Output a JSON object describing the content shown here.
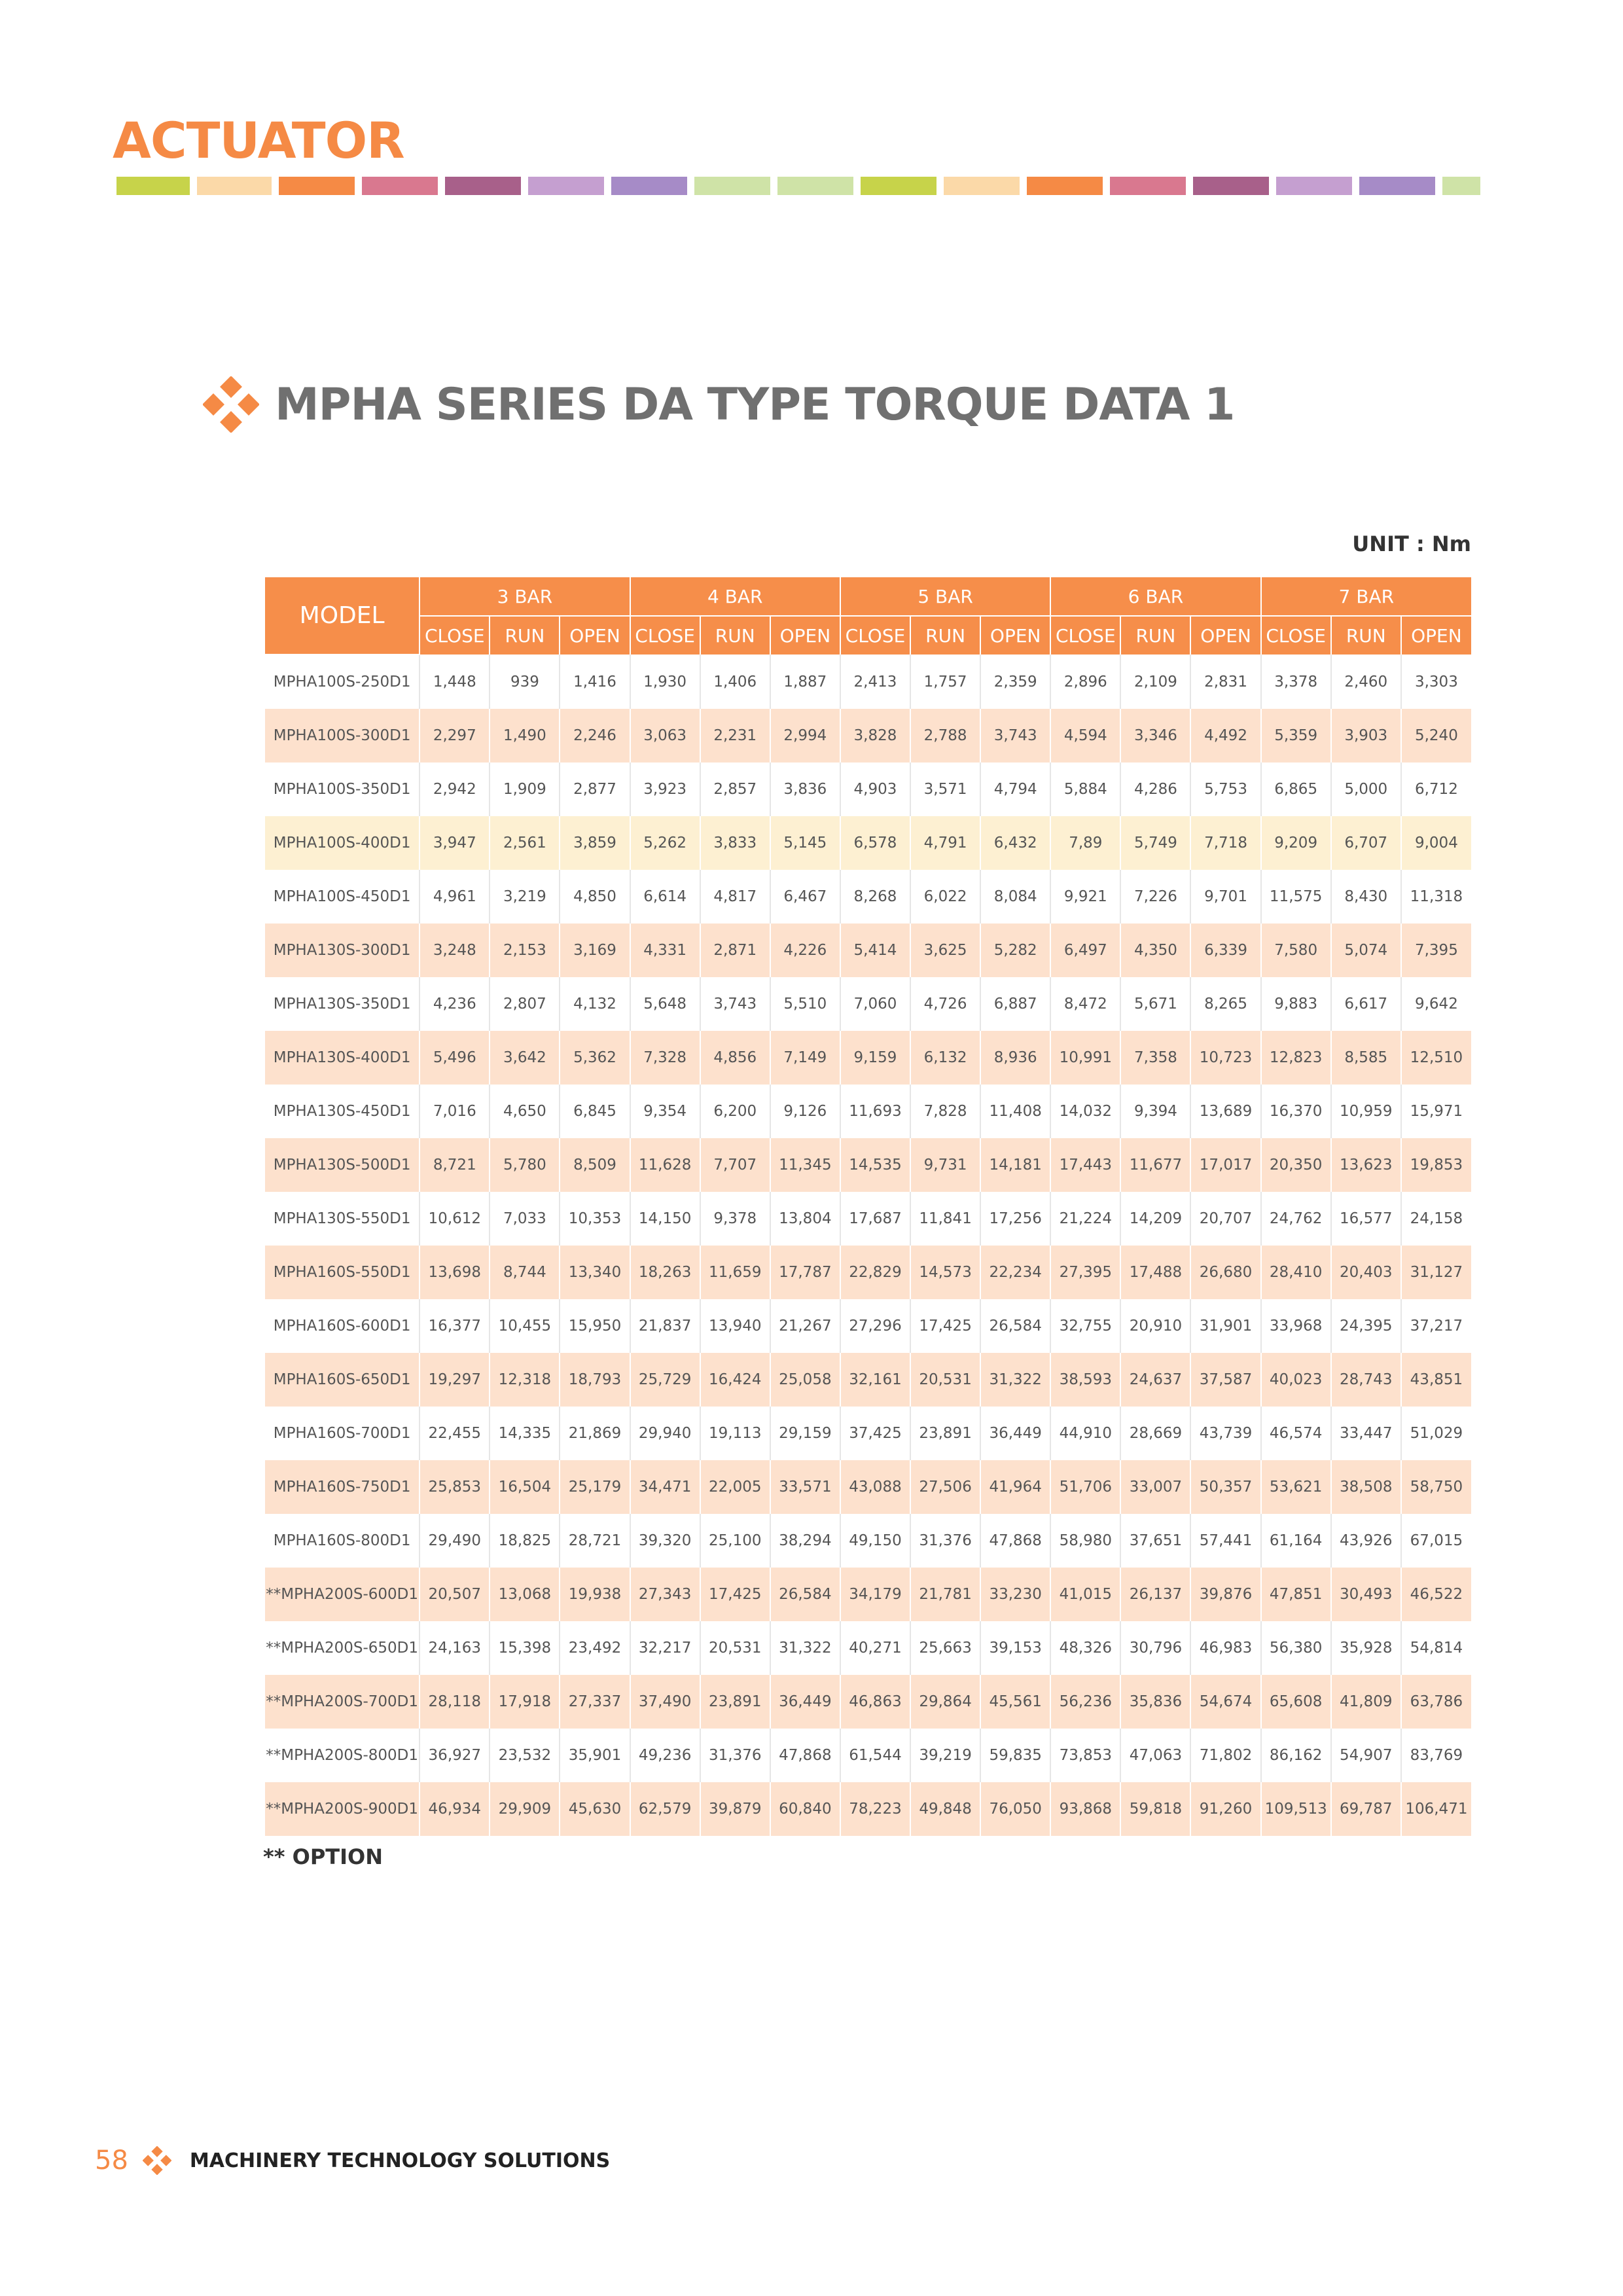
{
  "header": {
    "section": "ACTUATOR",
    "color_bar": [
      "#c7d34a",
      "#fbd9a8",
      "#f58a45",
      "#d9788f",
      "#a8608a",
      "#c59fd0",
      "#a68bc7",
      "#cfe3a7",
      "#cfe3a7",
      "#c7d34a",
      "#fbd9a8",
      "#f58a45",
      "#d9788f",
      "#a8608a",
      "#c59fd0",
      "#a68bc7",
      "#cfe3a7"
    ]
  },
  "heading": {
    "title": "MPHA SERIES DA TYPE TORQUE DATA 1",
    "icon": "diamond-cluster-icon"
  },
  "unit_label": "UNIT : Nm",
  "table": {
    "model_header": "MODEL",
    "pressures": [
      "3 BAR",
      "4 BAR",
      "5 BAR",
      "6 BAR",
      "7 BAR"
    ],
    "sub_headers": [
      "CLOSE",
      "RUN",
      "OPEN"
    ],
    "highlight_row_index": 3,
    "rows": [
      {
        "model": "MPHA100S-250D1",
        "values": [
          "1,448",
          "939",
          "1,416",
          "1,930",
          "1,406",
          "1,887",
          "2,413",
          "1,757",
          "2,359",
          "2,896",
          "2,109",
          "2,831",
          "3,378",
          "2,460",
          "3,303"
        ]
      },
      {
        "model": "MPHA100S-300D1",
        "values": [
          "2,297",
          "1,490",
          "2,246",
          "3,063",
          "2,231",
          "2,994",
          "3,828",
          "2,788",
          "3,743",
          "4,594",
          "3,346",
          "4,492",
          "5,359",
          "3,903",
          "5,240"
        ]
      },
      {
        "model": "MPHA100S-350D1",
        "values": [
          "2,942",
          "1,909",
          "2,877",
          "3,923",
          "2,857",
          "3,836",
          "4,903",
          "3,571",
          "4,794",
          "5,884",
          "4,286",
          "5,753",
          "6,865",
          "5,000",
          "6,712"
        ]
      },
      {
        "model": "MPHA100S-400D1",
        "values": [
          "3,947",
          "2,561",
          "3,859",
          "5,262",
          "3,833",
          "5,145",
          "6,578",
          "4,791",
          "6,432",
          "7,89",
          "5,749",
          "7,718",
          "9,209",
          "6,707",
          "9,004"
        ]
      },
      {
        "model": "MPHA100S-450D1",
        "values": [
          "4,961",
          "3,219",
          "4,850",
          "6,614",
          "4,817",
          "6,467",
          "8,268",
          "6,022",
          "8,084",
          "9,921",
          "7,226",
          "9,701",
          "11,575",
          "8,430",
          "11,318"
        ]
      },
      {
        "model": "MPHA130S-300D1",
        "values": [
          "3,248",
          "2,153",
          "3,169",
          "4,331",
          "2,871",
          "4,226",
          "5,414",
          "3,625",
          "5,282",
          "6,497",
          "4,350",
          "6,339",
          "7,580",
          "5,074",
          "7,395"
        ]
      },
      {
        "model": "MPHA130S-350D1",
        "values": [
          "4,236",
          "2,807",
          "4,132",
          "5,648",
          "3,743",
          "5,510",
          "7,060",
          "4,726",
          "6,887",
          "8,472",
          "5,671",
          "8,265",
          "9,883",
          "6,617",
          "9,642"
        ]
      },
      {
        "model": "MPHA130S-400D1",
        "values": [
          "5,496",
          "3,642",
          "5,362",
          "7,328",
          "4,856",
          "7,149",
          "9,159",
          "6,132",
          "8,936",
          "10,991",
          "7,358",
          "10,723",
          "12,823",
          "8,585",
          "12,510"
        ]
      },
      {
        "model": "MPHA130S-450D1",
        "values": [
          "7,016",
          "4,650",
          "6,845",
          "9,354",
          "6,200",
          "9,126",
          "11,693",
          "7,828",
          "11,408",
          "14,032",
          "9,394",
          "13,689",
          "16,370",
          "10,959",
          "15,971"
        ]
      },
      {
        "model": "MPHA130S-500D1",
        "values": [
          "8,721",
          "5,780",
          "8,509",
          "11,628",
          "7,707",
          "11,345",
          "14,535",
          "9,731",
          "14,181",
          "17,443",
          "11,677",
          "17,017",
          "20,350",
          "13,623",
          "19,853"
        ]
      },
      {
        "model": "MPHA130S-550D1",
        "values": [
          "10,612",
          "7,033",
          "10,353",
          "14,150",
          "9,378",
          "13,804",
          "17,687",
          "11,841",
          "17,256",
          "21,224",
          "14,209",
          "20,707",
          "24,762",
          "16,577",
          "24,158"
        ]
      },
      {
        "model": "MPHA160S-550D1",
        "values": [
          "13,698",
          "8,744",
          "13,340",
          "18,263",
          "11,659",
          "17,787",
          "22,829",
          "14,573",
          "22,234",
          "27,395",
          "17,488",
          "26,680",
          "28,410",
          "20,403",
          "31,127"
        ]
      },
      {
        "model": "MPHA160S-600D1",
        "values": [
          "16,377",
          "10,455",
          "15,950",
          "21,837",
          "13,940",
          "21,267",
          "27,296",
          "17,425",
          "26,584",
          "32,755",
          "20,910",
          "31,901",
          "33,968",
          "24,395",
          "37,217"
        ]
      },
      {
        "model": "MPHA160S-650D1",
        "values": [
          "19,297",
          "12,318",
          "18,793",
          "25,729",
          "16,424",
          "25,058",
          "32,161",
          "20,531",
          "31,322",
          "38,593",
          "24,637",
          "37,587",
          "40,023",
          "28,743",
          "43,851"
        ]
      },
      {
        "model": "MPHA160S-700D1",
        "values": [
          "22,455",
          "14,335",
          "21,869",
          "29,940",
          "19,113",
          "29,159",
          "37,425",
          "23,891",
          "36,449",
          "44,910",
          "28,669",
          "43,739",
          "46,574",
          "33,447",
          "51,029"
        ]
      },
      {
        "model": "MPHA160S-750D1",
        "values": [
          "25,853",
          "16,504",
          "25,179",
          "34,471",
          "22,005",
          "33,571",
          "43,088",
          "27,506",
          "41,964",
          "51,706",
          "33,007",
          "50,357",
          "53,621",
          "38,508",
          "58,750"
        ]
      },
      {
        "model": "MPHA160S-800D1",
        "values": [
          "29,490",
          "18,825",
          "28,721",
          "39,320",
          "25,100",
          "38,294",
          "49,150",
          "31,376",
          "47,868",
          "58,980",
          "37,651",
          "57,441",
          "61,164",
          "43,926",
          "67,015"
        ]
      },
      {
        "model": "**MPHA200S-600D1",
        "values": [
          "20,507",
          "13,068",
          "19,938",
          "27,343",
          "17,425",
          "26,584",
          "34,179",
          "21,781",
          "33,230",
          "41,015",
          "26,137",
          "39,876",
          "47,851",
          "30,493",
          "46,522"
        ]
      },
      {
        "model": "**MPHA200S-650D1",
        "values": [
          "24,163",
          "15,398",
          "23,492",
          "32,217",
          "20,531",
          "31,322",
          "40,271",
          "25,663",
          "39,153",
          "48,326",
          "30,796",
          "46,983",
          "56,380",
          "35,928",
          "54,814"
        ]
      },
      {
        "model": "**MPHA200S-700D1",
        "values": [
          "28,118",
          "17,918",
          "27,337",
          "37,490",
          "23,891",
          "36,449",
          "46,863",
          "29,864",
          "45,561",
          "56,236",
          "35,836",
          "54,674",
          "65,608",
          "41,809",
          "63,786"
        ]
      },
      {
        "model": "**MPHA200S-800D1",
        "values": [
          "36,927",
          "23,532",
          "35,901",
          "49,236",
          "31,376",
          "47,868",
          "61,544",
          "39,219",
          "59,835",
          "73,853",
          "47,063",
          "71,802",
          "86,162",
          "54,907",
          "83,769"
        ]
      },
      {
        "model": "**MPHA200S-900D1",
        "values": [
          "46,934",
          "29,909",
          "45,630",
          "62,579",
          "39,879",
          "60,840",
          "78,223",
          "49,848",
          "76,050",
          "93,868",
          "59,818",
          "91,260",
          "109,513",
          "69,787",
          "106,471"
        ]
      }
    ]
  },
  "note": "** OPTION",
  "footer": {
    "page_number": "58",
    "brand": "MACHINERY TECHNOLOGY SOLUTIONS",
    "icon": "diamond-cluster-icon"
  }
}
